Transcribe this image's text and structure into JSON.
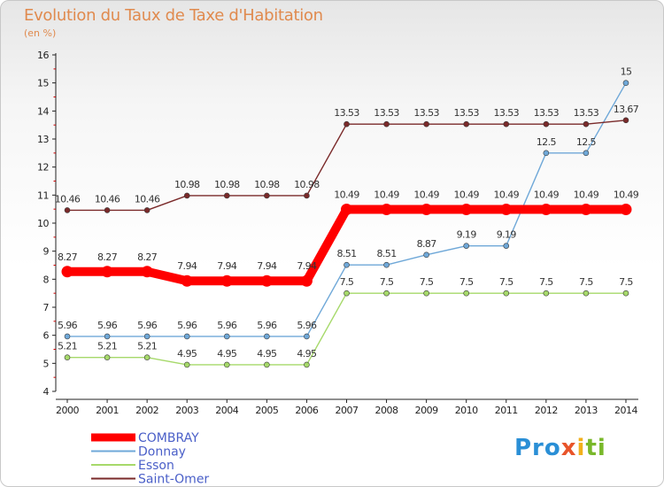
{
  "header": {
    "title": "Evolution du Taux de Taxe d'Habitation",
    "subtitle": "(en %)"
  },
  "logo": {
    "parts": [
      "Pro",
      "x",
      "i",
      "ti"
    ]
  },
  "chart_data": {
    "type": "line",
    "title": "Evolution du Taux de Taxe d'Habitation",
    "ylabel": "(en %)",
    "xlabel": "",
    "ylim": [
      4,
      16
    ],
    "y_ticks": [
      "4",
      "5",
      "6",
      "7",
      "8",
      "9",
      "10",
      "11",
      "12",
      "13",
      "14",
      "15",
      "16"
    ],
    "categories": [
      "2000",
      "2001",
      "2002",
      "2003",
      "2004",
      "2005",
      "2006",
      "2007",
      "2008",
      "2009",
      "2010",
      "2011",
      "2012",
      "2013",
      "2014"
    ],
    "series": [
      {
        "name": "COMBRAY",
        "color": "#ff0000",
        "values": [
          8.27,
          8.27,
          8.27,
          7.94,
          7.94,
          7.94,
          7.94,
          10.49,
          10.49,
          10.49,
          10.49,
          10.49,
          10.49,
          10.49,
          10.49
        ],
        "labels": [
          "8.27",
          "8.27",
          "8.27",
          "7.94",
          "7.94",
          "7.94",
          "7.94",
          "10.49",
          "10.49",
          "10.49",
          "10.49",
          "10.49",
          "10.49",
          "10.49",
          "10.49"
        ]
      },
      {
        "name": "Donnay",
        "color": "#6fa8d8",
        "values": [
          5.96,
          5.96,
          5.96,
          5.96,
          5.96,
          5.96,
          5.96,
          8.51,
          8.51,
          8.87,
          9.19,
          9.19,
          12.5,
          12.5,
          15
        ],
        "labels": [
          "5.96",
          "5.96",
          "5.96",
          "5.96",
          "5.96",
          "5.96",
          "5.96",
          "8.51",
          "8.51",
          "8.87",
          "9.19",
          "9.19",
          "12.5",
          "12.5",
          "15"
        ]
      },
      {
        "name": "Esson",
        "color": "#a6d96a",
        "values": [
          5.21,
          5.21,
          5.21,
          4.95,
          4.95,
          4.95,
          4.95,
          7.5,
          7.5,
          7.5,
          7.5,
          7.5,
          7.5,
          7.5,
          7.5
        ],
        "labels": [
          "5.21",
          "5.21",
          "5.21",
          "4.95",
          "4.95",
          "4.95",
          "4.95",
          "7.5",
          "7.5",
          "7.5",
          "7.5",
          "7.5",
          "7.5",
          "7.5",
          "7.5"
        ]
      },
      {
        "name": "Saint-Omer",
        "color": "#7a2a2a",
        "values": [
          10.46,
          10.46,
          10.46,
          10.98,
          10.98,
          10.98,
          10.98,
          13.53,
          13.53,
          13.53,
          13.53,
          13.53,
          13.53,
          13.53,
          13.67
        ],
        "labels": [
          "10.46",
          "10.46",
          "10.46",
          "10.98",
          "10.98",
          "10.98",
          "10.98",
          "13.53",
          "13.53",
          "13.53",
          "13.53",
          "13.53",
          "13.53",
          "13.53",
          "13.67"
        ]
      }
    ],
    "legend": {
      "position": "bottom-left",
      "text_color": "#4a5fc8"
    },
    "grid": false
  }
}
